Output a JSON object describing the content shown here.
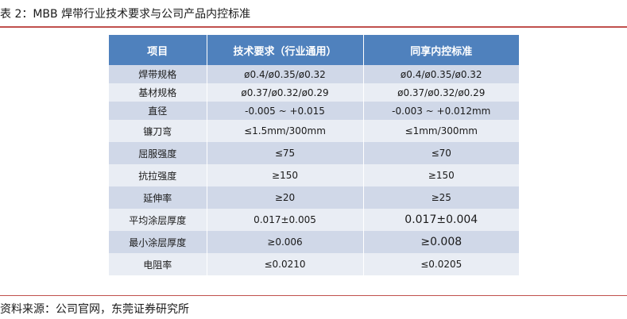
{
  "caption": "表 2：MBB 焊带行业技术要求与公司产品内控标准",
  "source": "资料来源：公司官网，东莞证券研究所",
  "table": {
    "headers": [
      "项目",
      "技术要求（行业通用）",
      "同享内控标准"
    ],
    "rows": [
      {
        "item": "焊带规格",
        "industry": "ø0.4/ø0.35/ø0.32",
        "company": "ø0.4/ø0.35/ø0.32"
      },
      {
        "item": "基材规格",
        "industry": "ø0.37/ø0.32/ø0.29",
        "company": "ø0.37/ø0.32/ø0.29"
      },
      {
        "item": "直径",
        "industry": "-0.005 ~ +0.015",
        "company": "-0.003 ~ +0.012mm"
      },
      {
        "item": "镰刀弯",
        "industry": "≤1.5mm/300mm",
        "company": "≤1mm/300mm"
      },
      {
        "item": "屈服强度",
        "industry": "≤75",
        "company": "≤70"
      },
      {
        "item": "抗拉强度",
        "industry": "≥150",
        "company": "≥150"
      },
      {
        "item": "延伸率",
        "industry": "≥20",
        "company": "≥25"
      },
      {
        "item": "平均涂层厚度",
        "industry": "0.017±0.005",
        "company": "0.017±0.004"
      },
      {
        "item": "最小涂层厚度",
        "industry": "≥0.006",
        "company": "≥0.008"
      },
      {
        "item": "电阻率",
        "industry": "≤0.0210",
        "company": "≤0.0205"
      }
    ]
  },
  "colors": {
    "header_bg": "#4f81bd",
    "row_dark": "#d0d8e8",
    "row_light": "#e9edf4",
    "rule": "#c0504d"
  }
}
